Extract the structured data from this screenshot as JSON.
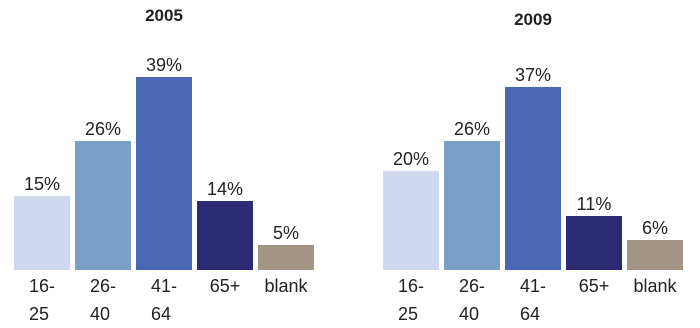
{
  "chart_data": [
    {
      "type": "bar",
      "title": "2005",
      "categories": [
        "16-25",
        "26-40",
        "41-64",
        "65+",
        "blank"
      ],
      "values": [
        15,
        26,
        39,
        14,
        5
      ],
      "value_labels": [
        "15%",
        "26%",
        "39%",
        "14%",
        "5%"
      ],
      "colors": [
        "#cfd8ee",
        "#7aa0c8",
        "#4a67b3",
        "#2b2a72",
        "#a39584"
      ]
    },
    {
      "type": "bar",
      "title": "2009",
      "categories": [
        "16-25",
        "26-40",
        "41-64",
        "65+",
        "blank"
      ],
      "values": [
        20,
        26,
        37,
        11,
        6
      ],
      "value_labels": [
        "20%",
        "26%",
        "37%",
        "11%",
        "6%"
      ],
      "colors": [
        "#cfd8ee",
        "#7aa0c8",
        "#4a67b3",
        "#2b2a72",
        "#a39584"
      ]
    }
  ]
}
